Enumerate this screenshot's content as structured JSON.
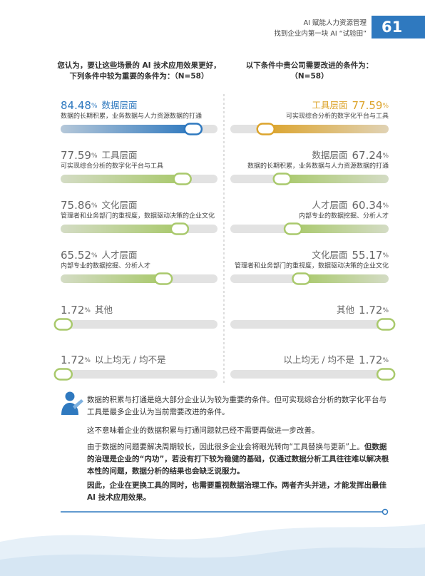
{
  "header": {
    "lines": [
      "AI 赋能人力资源管理",
      "找到企业内第一块 AI “试验田”"
    ],
    "page_number": "61"
  },
  "chart_data": [
    {
      "type": "bar",
      "title": [
        "您认为，要让这些场景的 AI 技术应用效果更好，",
        "下列条件中较为重要的条件为：（N=58）"
      ],
      "categories": [
        "数据层面",
        "工具层面",
        "文化层面",
        "人才层面",
        "其他",
        "以上均无 / 均不是"
      ],
      "values": [
        84.48,
        77.59,
        75.86,
        65.52,
        1.72,
        1.72
      ],
      "unit": "%",
      "descriptions": [
        "数据的长期积累，业务数据与人力资源数据的打通",
        "可实现综合分析的数字化平台与工具",
        "管理者和业务部门的重视度，数据驱动决策的企业文化",
        "内部专业的数据挖掘、分析人才"
      ],
      "colors": [
        "#2f79bf",
        "#a9c96c",
        "#a9c96c",
        "#a9c96c",
        "#a9c96c",
        "#a9c96c"
      ],
      "xlim": [
        0,
        100
      ],
      "bar_direction": "left-to-right"
    },
    {
      "type": "bar",
      "title": [
        "以下条件中贵公司需要改进的条件为：",
        "（N=58）"
      ],
      "categories": [
        "工具层面",
        "数据层面",
        "人才层面",
        "文化层面",
        "其他",
        "以上均无 / 均不是"
      ],
      "values": [
        77.59,
        67.24,
        60.34,
        55.17,
        1.72,
        1.72
      ],
      "unit": "%",
      "descriptions": [
        "可实现综合分析的数字化平台与工具",
        "数据的长期积累，业务数据与人力资源数据的打通",
        "内部专业的数据挖掘、分析人才",
        "管理者和业务部门的重视度，数据驱动决策的企业文化"
      ],
      "colors": [
        "#dca42c",
        "#a9c96c",
        "#a9c96c",
        "#a9c96c",
        "#a9c96c",
        "#a9c96c"
      ],
      "xlim": [
        0,
        100
      ],
      "bar_direction": "right-to-left"
    }
  ],
  "notes": [
    [
      "数据的积累与打通是绝大部分企业认为较为重要的条件。但可实现综合分析的数字化平台与工具是最多企业认为当前需要改进的条件。"
    ],
    [
      "这不意味着企业的数据积累与打通问题就已经不需要再做进一步改善。"
    ],
    [
      "由于数据的问题要解决周期较长，因此很多企业会将眼光转向“工具替换与更新”上。",
      "但数据的治理是企业的“内功”，若没有打下较为稳健的基础，仅通过数据分析工具往往难以解决根本性的问题，数据分析的结果也会缺乏说服力。"
    ],
    [
      "因此，企业在更换工具的同时，也需要重视数据治理工作。两者齐头并进，才能发挥出最佳 AI 技术应用效果。"
    ]
  ]
}
